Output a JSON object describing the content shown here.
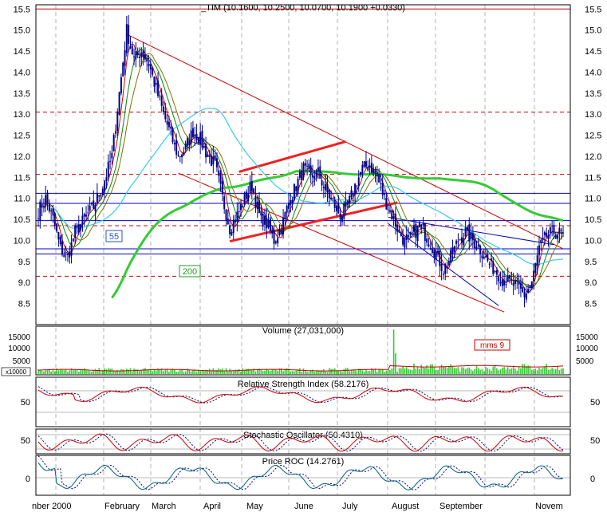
{
  "colors": {
    "background": "#ffffff",
    "frame": "#000000",
    "candle": "#00008b",
    "gridline": "#a0a0a0",
    "res_red": "#cc0000",
    "sup_blue": "#0000cc",
    "channel_red": "#ee2222",
    "ma55": "#33ccee",
    "ma200": "#33cc33",
    "ma_red": "#cc0000",
    "ma_olive": "#807000",
    "ma_green": "#008800",
    "volume_bar": "#33cc33",
    "osc_line": "#cc0000",
    "osc_dot": "#000080",
    "roc_line": "#006080"
  },
  "header": {
    "title": "_TIM (10.1600, 10.2500, 10.0700, 10.1900 +0.0330)"
  },
  "month_labels": [
    "nber 2000",
    "February",
    "March",
    "April",
    "May",
    "June",
    "July",
    "August",
    "September",
    "Novem"
  ],
  "ma_labels": {
    "ma55": "55",
    "ma200": "200"
  },
  "volume_panel": {
    "title": "Volume (27,031,000)",
    "unit": "x10000",
    "ticks": [
      "15000",
      "10000",
      "5000"
    ],
    "mms_label": "mms 9"
  },
  "rsi_panel": {
    "title": "Relative Strength Index (58.2176)",
    "ticks": [
      "50"
    ]
  },
  "stoch_panel": {
    "title": "Stochastic Oscillator (50.4310)",
    "ticks": [
      "50"
    ]
  },
  "roc_panel": {
    "title": "Price ROC (14.2761)",
    "ticks": [
      "0"
    ]
  },
  "chart_data": {
    "type": "candlestick",
    "symbol": "_TIM",
    "last": {
      "open": 10.16,
      "high": 10.25,
      "low": 10.07,
      "close": 10.19,
      "change": 0.033
    },
    "y_ticks": [
      8.5,
      9.0,
      9.5,
      10.0,
      10.5,
      11.0,
      11.5,
      12.0,
      12.5,
      13.0,
      13.5,
      14.0,
      14.5,
      15.0,
      15.5
    ],
    "y_tick_labels": [
      "8.5",
      "9.0",
      "9.5",
      "10.0",
      "10.5",
      "11.0",
      "11.5",
      "12.0",
      "12.5",
      "13.0",
      "13.5",
      "14.0",
      "14.5",
      "15.0",
      "15.5"
    ],
    "ylim": [
      8.0,
      15.6
    ],
    "close_anchors": [
      [
        0,
        10.7
      ],
      [
        4,
        11.0
      ],
      [
        8,
        10.5
      ],
      [
        12,
        9.8
      ],
      [
        16,
        9.6
      ],
      [
        20,
        10.2
      ],
      [
        25,
        10.5
      ],
      [
        30,
        10.8
      ],
      [
        35,
        11.3
      ],
      [
        40,
        12.0
      ],
      [
        44,
        13.5
      ],
      [
        48,
        15.0
      ],
      [
        52,
        14.3
      ],
      [
        56,
        14.5
      ],
      [
        60,
        14.2
      ],
      [
        64,
        13.6
      ],
      [
        68,
        13.0
      ],
      [
        72,
        12.5
      ],
      [
        76,
        12.0
      ],
      [
        80,
        12.2
      ],
      [
        84,
        12.6
      ],
      [
        88,
        12.4
      ],
      [
        92,
        12.0
      ],
      [
        96,
        11.8
      ],
      [
        100,
        11.0
      ],
      [
        104,
        10.3
      ],
      [
        108,
        10.6
      ],
      [
        112,
        11.0
      ],
      [
        116,
        11.3
      ],
      [
        120,
        10.6
      ],
      [
        124,
        10.4
      ],
      [
        128,
        10.0
      ],
      [
        132,
        10.3
      ],
      [
        136,
        10.9
      ],
      [
        140,
        11.3
      ],
      [
        144,
        11.7
      ],
      [
        148,
        11.5
      ],
      [
        152,
        11.6
      ],
      [
        156,
        11.2
      ],
      [
        160,
        10.9
      ],
      [
        164,
        10.6
      ],
      [
        168,
        10.8
      ],
      [
        172,
        11.3
      ],
      [
        176,
        11.7
      ],
      [
        180,
        11.8
      ],
      [
        184,
        11.5
      ],
      [
        188,
        11.0
      ],
      [
        192,
        10.6
      ],
      [
        196,
        10.2
      ],
      [
        200,
        9.9
      ],
      [
        204,
        10.2
      ],
      [
        208,
        10.3
      ],
      [
        212,
        10.0
      ],
      [
        216,
        9.7
      ],
      [
        220,
        9.3
      ],
      [
        224,
        9.6
      ],
      [
        228,
        10.0
      ],
      [
        232,
        10.2
      ],
      [
        236,
        10.0
      ],
      [
        240,
        9.8
      ],
      [
        244,
        9.5
      ],
      [
        248,
        9.3
      ],
      [
        252,
        9.1
      ],
      [
        256,
        9.0
      ],
      [
        260,
        8.9
      ],
      [
        264,
        8.7
      ],
      [
        268,
        9.0
      ],
      [
        272,
        9.8
      ],
      [
        276,
        10.1
      ],
      [
        280,
        10.2
      ],
      [
        284,
        10.15
      ],
      [
        285,
        10.19
      ]
    ],
    "resistance_red_dashed": [
      15.5,
      13.05,
      11.57,
      10.35,
      9.15
    ],
    "support_blue": [
      11.12,
      10.88,
      10.47,
      9.8,
      9.68
    ],
    "volume_spike": 17000,
    "rsi_range": [
      0,
      100
    ],
    "stoch_range": [
      0,
      100
    ],
    "current_values": {
      "volume": 27031000,
      "rsi": 58.2176,
      "stochastic": 50.431,
      "roc": 14.2761
    }
  }
}
